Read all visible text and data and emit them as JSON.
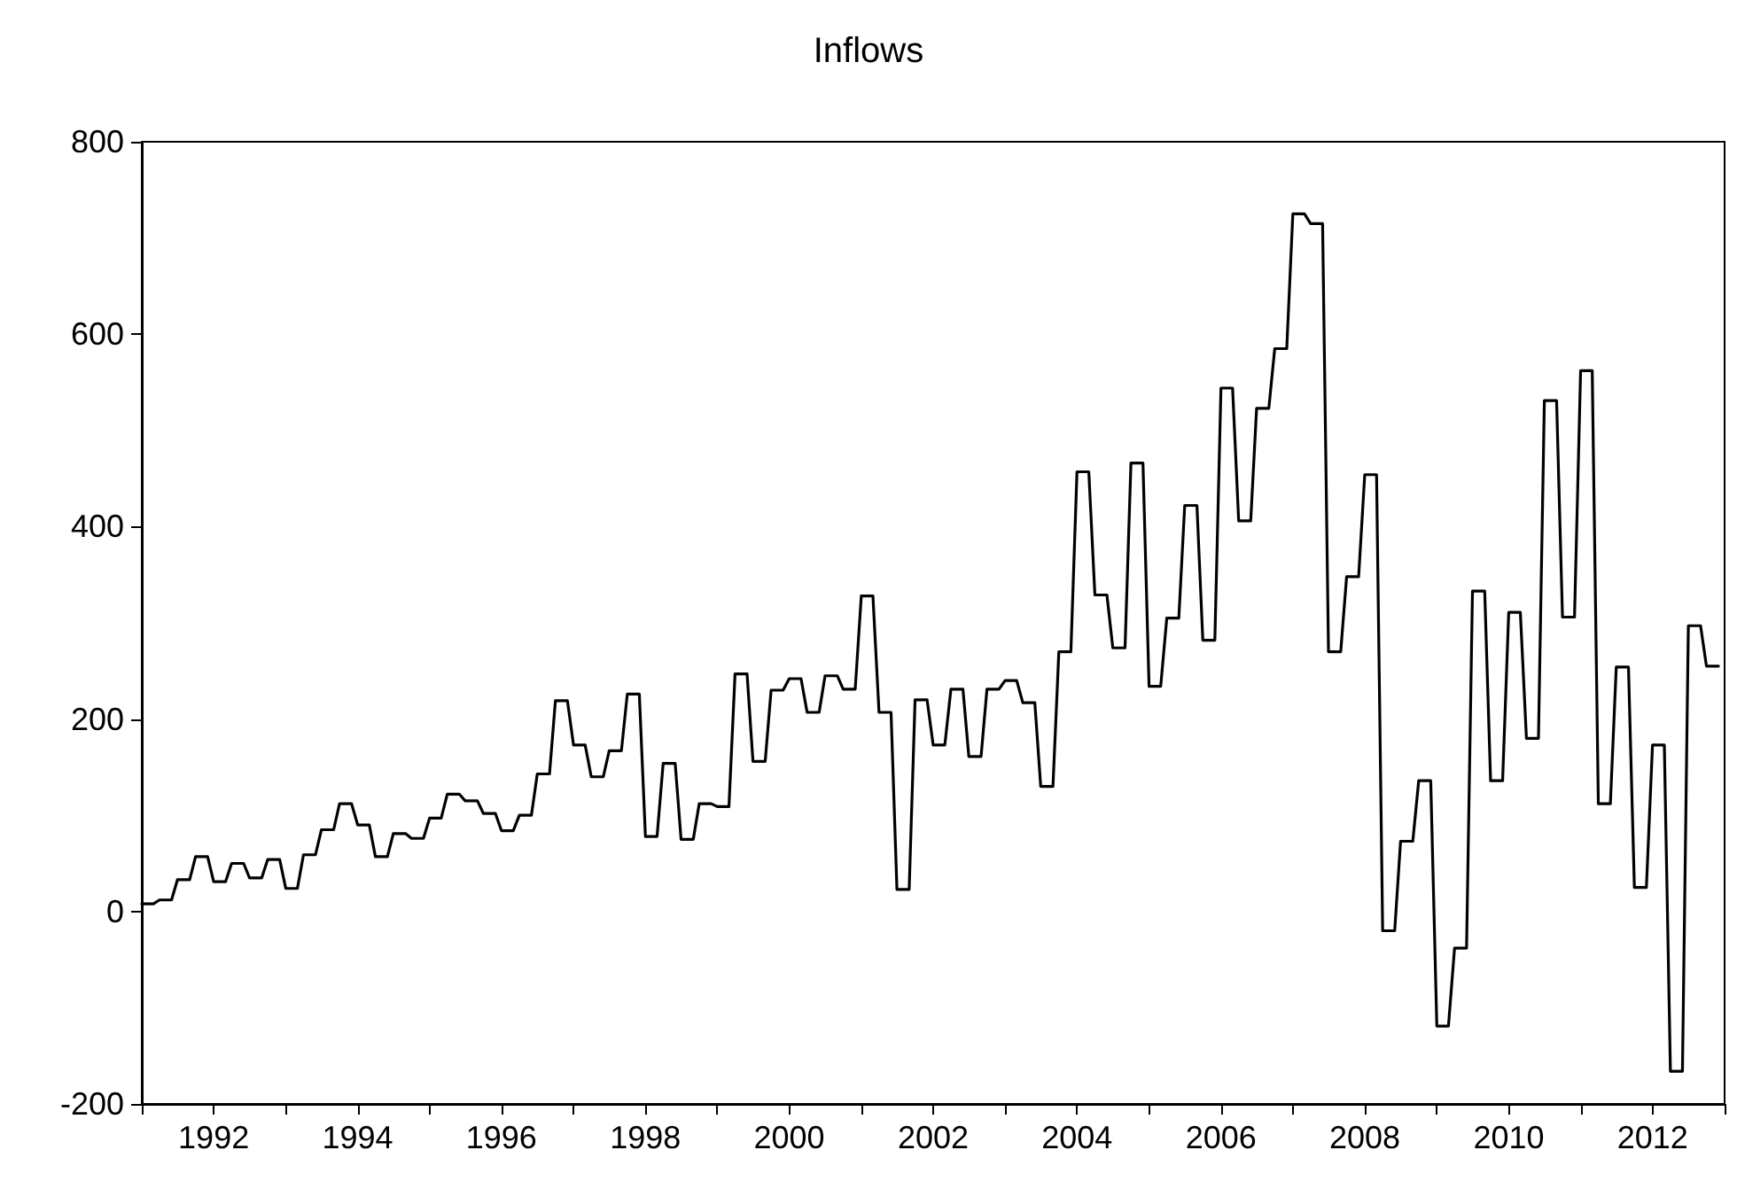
{
  "chart_data": {
    "type": "line",
    "title": "Inflows",
    "xlim": [
      "1991-01",
      "2013-01"
    ],
    "xticks": [
      {
        "value": "1991-01",
        "label": null
      },
      {
        "value": "1992-01",
        "label": "1992"
      },
      {
        "value": "1993-01",
        "label": null
      },
      {
        "value": "1994-01",
        "label": "1994"
      },
      {
        "value": "1995-01",
        "label": null
      },
      {
        "value": "1996-01",
        "label": "1996"
      },
      {
        "value": "1997-01",
        "label": null
      },
      {
        "value": "1998-01",
        "label": "1998"
      },
      {
        "value": "1999-01",
        "label": null
      },
      {
        "value": "2000-01",
        "label": "2000"
      },
      {
        "value": "2001-01",
        "label": null
      },
      {
        "value": "2002-01",
        "label": "2002"
      },
      {
        "value": "2003-01",
        "label": null
      },
      {
        "value": "2004-01",
        "label": "2004"
      },
      {
        "value": "2005-01",
        "label": null
      },
      {
        "value": "2006-01",
        "label": "2006"
      },
      {
        "value": "2007-01",
        "label": null
      },
      {
        "value": "2008-01",
        "label": "2008"
      },
      {
        "value": "2009-01",
        "label": null
      },
      {
        "value": "2010-01",
        "label": "2010"
      },
      {
        "value": "2011-01",
        "label": null
      },
      {
        "value": "2012-01",
        "label": "2012"
      },
      {
        "value": "2013-01",
        "label": null
      }
    ],
    "ylim": [
      -200,
      800
    ],
    "yticks": [
      -200,
      0,
      200,
      400,
      600,
      800
    ],
    "grid": false,
    "marker": "none",
    "x": [
      "1991-01",
      "1991-03",
      "1991-04",
      "1991-06",
      "1991-07",
      "1991-09",
      "1991-10",
      "1991-12",
      "1992-01",
      "1992-03",
      "1992-04",
      "1992-06",
      "1992-07",
      "1992-09",
      "1992-10",
      "1992-12",
      "1993-01",
      "1993-03",
      "1993-04",
      "1993-06",
      "1993-07",
      "1993-09",
      "1993-10",
      "1993-12",
      "1994-01",
      "1994-03",
      "1994-04",
      "1994-06",
      "1994-07",
      "1994-09",
      "1994-10",
      "1994-12",
      "1995-01",
      "1995-03",
      "1995-04",
      "1995-06",
      "1995-07",
      "1995-09",
      "1995-10",
      "1995-12",
      "1996-01",
      "1996-03",
      "1996-04",
      "1996-06",
      "1996-07",
      "1996-09",
      "1996-10",
      "1996-12",
      "1997-01",
      "1997-03",
      "1997-04",
      "1997-06",
      "1997-07",
      "1997-09",
      "1997-10",
      "1997-12",
      "1998-01",
      "1998-03",
      "1998-04",
      "1998-06",
      "1998-07",
      "1998-09",
      "1998-10",
      "1998-12",
      "1999-01",
      "1999-03",
      "1999-04",
      "1999-06",
      "1999-07",
      "1999-09",
      "1999-10",
      "1999-12",
      "2000-01",
      "2000-03",
      "2000-04",
      "2000-06",
      "2000-07",
      "2000-09",
      "2000-10",
      "2000-12",
      "2001-01",
      "2001-03",
      "2001-04",
      "2001-06",
      "2001-07",
      "2001-09",
      "2001-10",
      "2001-12",
      "2002-01",
      "2002-03",
      "2002-04",
      "2002-06",
      "2002-07",
      "2002-09",
      "2002-10",
      "2002-12",
      "2003-01",
      "2003-03",
      "2003-04",
      "2003-06",
      "2003-07",
      "2003-09",
      "2003-10",
      "2003-12",
      "2004-01",
      "2004-03",
      "2004-04",
      "2004-06",
      "2004-07",
      "2004-09",
      "2004-10",
      "2004-12",
      "2005-01",
      "2005-03",
      "2005-04",
      "2005-06",
      "2005-07",
      "2005-09",
      "2005-10",
      "2005-12",
      "2006-01",
      "2006-03",
      "2006-04",
      "2006-06",
      "2006-07",
      "2006-09",
      "2006-10",
      "2006-12",
      "2007-01",
      "2007-03",
      "2007-04",
      "2007-06",
      "2007-07",
      "2007-09",
      "2007-10",
      "2007-12",
      "2008-01",
      "2008-03",
      "2008-04",
      "2008-06",
      "2008-07",
      "2008-09",
      "2008-10",
      "2008-12",
      "2009-01",
      "2009-03",
      "2009-04",
      "2009-06",
      "2009-07",
      "2009-09",
      "2009-10",
      "2009-12",
      "2010-01",
      "2010-03",
      "2010-04",
      "2010-06",
      "2010-07",
      "2010-09",
      "2010-10",
      "2010-12",
      "2011-01",
      "2011-03",
      "2011-04",
      "2011-06",
      "2011-07",
      "2011-09",
      "2011-10",
      "2011-12",
      "2012-01",
      "2012-03",
      "2012-04",
      "2012-06",
      "2012-07",
      "2012-09",
      "2012-10",
      "2012-12"
    ],
    "series": [
      {
        "color": "#000000",
        "values": [
          8,
          8,
          12,
          12,
          33,
          33,
          57,
          57,
          31,
          31,
          50,
          50,
          35,
          35,
          54,
          54,
          24,
          24,
          59,
          59,
          85,
          85,
          112,
          112,
          90,
          90,
          57,
          57,
          81,
          81,
          76,
          76,
          97,
          97,
          122,
          122,
          115,
          115,
          102,
          102,
          84,
          84,
          100,
          100,
          143,
          143,
          219,
          219,
          173,
          173,
          140,
          140,
          167,
          167,
          226,
          226,
          78,
          78,
          154,
          154,
          75,
          75,
          112,
          112,
          109,
          109,
          247,
          247,
          156,
          156,
          230,
          230,
          242,
          242,
          207,
          207,
          245,
          245,
          231,
          231,
          328,
          328,
          207,
          207,
          23,
          23,
          220,
          220,
          173,
          173,
          231,
          231,
          161,
          161,
          231,
          231,
          240,
          240,
          217,
          217,
          130,
          130,
          270,
          270,
          457,
          457,
          329,
          329,
          274,
          274,
          466,
          466,
          234,
          234,
          305,
          305,
          422,
          422,
          282,
          282,
          544,
          544,
          406,
          406,
          523,
          523,
          585,
          585,
          725,
          725,
          715,
          715,
          270,
          270,
          348,
          348,
          454,
          454,
          -20,
          -20,
          73,
          73,
          136,
          136,
          -119,
          -119,
          -38,
          -38,
          333,
          333,
          136,
          136,
          311,
          311,
          180,
          180,
          531,
          531,
          306,
          306,
          562,
          562,
          112,
          112,
          254,
          254,
          25,
          25,
          173,
          173,
          -166,
          -166,
          297,
          297,
          255,
          255
        ]
      }
    ]
  }
}
